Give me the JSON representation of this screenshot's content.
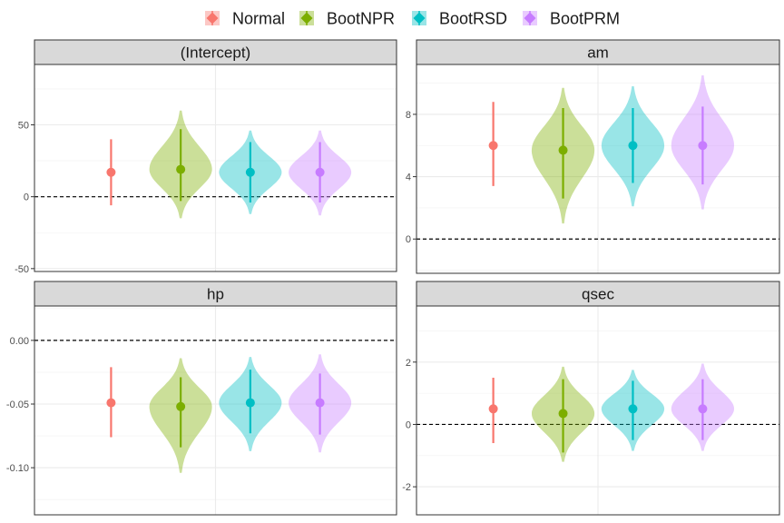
{
  "chart_data": {
    "type": "violin",
    "legend": {
      "position": "top",
      "entries": [
        {
          "name": "Normal",
          "color": "#F8766D"
        },
        {
          "name": "BootNPR",
          "color": "#7CAE00"
        },
        {
          "name": "BootRSD",
          "color": "#00BFC4"
        },
        {
          "name": "BootPRM",
          "color": "#C77CFF"
        }
      ]
    },
    "reference_line": 0,
    "grid": true,
    "panels": [
      {
        "title": "(Intercept)",
        "ylim": [
          -52,
          92
        ],
        "yticks": [
          -50,
          0,
          50
        ],
        "ytick_labels": [
          "-50",
          "0",
          "50"
        ],
        "series": [
          {
            "name": "Normal",
            "estimate": 17,
            "lower": -6,
            "upper": 40
          },
          {
            "name": "BootNPR",
            "estimate": 19,
            "lower": -3,
            "upper": 47,
            "violin": [
              -15,
              60
            ]
          },
          {
            "name": "BootRSD",
            "estimate": 17,
            "lower": -4,
            "upper": 38,
            "violin": [
              -12,
              46
            ]
          },
          {
            "name": "BootPRM",
            "estimate": 17,
            "lower": -4,
            "upper": 38,
            "violin": [
              -13,
              46
            ]
          }
        ]
      },
      {
        "title": "am",
        "ylim": [
          -2.2,
          11.2
        ],
        "yticks": [
          0,
          4,
          8
        ],
        "ytick_labels": [
          "0",
          "4",
          "8"
        ],
        "series": [
          {
            "name": "Normal",
            "estimate": 6.0,
            "lower": 3.4,
            "upper": 8.8
          },
          {
            "name": "BootNPR",
            "estimate": 5.7,
            "lower": 2.6,
            "upper": 8.4,
            "violin": [
              1.0,
              9.7
            ]
          },
          {
            "name": "BootRSD",
            "estimate": 6.0,
            "lower": 3.6,
            "upper": 8.4,
            "violin": [
              2.1,
              9.8
            ]
          },
          {
            "name": "BootPRM",
            "estimate": 6.0,
            "lower": 3.5,
            "upper": 8.5,
            "violin": [
              1.9,
              10.5
            ]
          }
        ]
      },
      {
        "title": "hp",
        "ylim": [
          -0.137,
          0.027
        ],
        "yticks": [
          -0.1,
          -0.05,
          0
        ],
        "ytick_labels": [
          "-0.10",
          "-0.05",
          "0.00"
        ],
        "series": [
          {
            "name": "Normal",
            "estimate": -0.049,
            "lower": -0.076,
            "upper": -0.021
          },
          {
            "name": "BootNPR",
            "estimate": -0.052,
            "lower": -0.084,
            "upper": -0.029,
            "violin": [
              -0.104,
              -0.014
            ]
          },
          {
            "name": "BootRSD",
            "estimate": -0.049,
            "lower": -0.073,
            "upper": -0.023,
            "violin": [
              -0.087,
              -0.013
            ]
          },
          {
            "name": "BootPRM",
            "estimate": -0.049,
            "lower": -0.074,
            "upper": -0.026,
            "violin": [
              -0.088,
              -0.011
            ]
          }
        ]
      },
      {
        "title": "qsec",
        "ylim": [
          -2.9,
          3.8
        ],
        "yticks": [
          -2,
          0,
          2
        ],
        "ytick_labels": [
          "-2",
          "0",
          "2"
        ],
        "series": [
          {
            "name": "Normal",
            "estimate": 0.5,
            "lower": -0.6,
            "upper": 1.5
          },
          {
            "name": "BootNPR",
            "estimate": 0.35,
            "lower": -0.9,
            "upper": 1.45,
            "violin": [
              -1.2,
              1.85
            ]
          },
          {
            "name": "BootRSD",
            "estimate": 0.5,
            "lower": -0.5,
            "upper": 1.4,
            "violin": [
              -0.85,
              1.75
            ]
          },
          {
            "name": "BootPRM",
            "estimate": 0.5,
            "lower": -0.5,
            "upper": 1.45,
            "violin": [
              -0.85,
              1.95
            ]
          }
        ]
      }
    ]
  }
}
